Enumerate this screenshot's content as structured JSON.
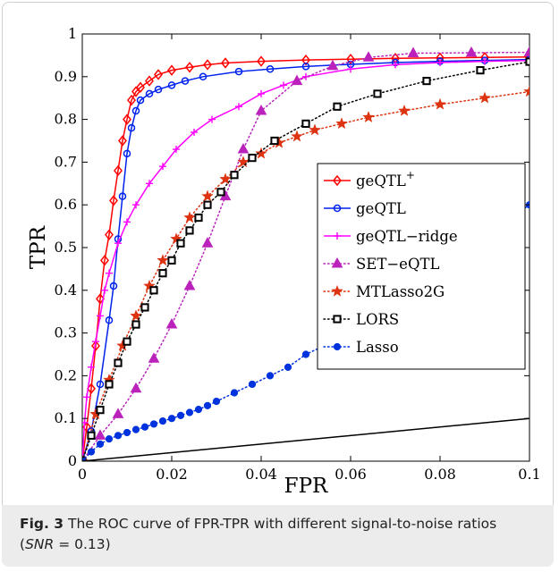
{
  "caption": {
    "fig_label": "Fig. 3",
    "text_main": " The ROC curve of FPR-TPR with different signal-to-noise ratios",
    "text_line2_open": "(",
    "snr_symbol": "SNR",
    "snr_value": " = 0.13)"
  },
  "chart_data": {
    "type": "line",
    "xlabel": "FPR",
    "ylabel": "TPR",
    "xlim": [
      0,
      0.1
    ],
    "ylim": [
      0,
      1
    ],
    "xticks": [
      0,
      0.02,
      0.04,
      0.06,
      0.08,
      0.1
    ],
    "xtick_labels": [
      "0",
      "0.02",
      "0.04",
      "0.06",
      "0.08",
      "0.1"
    ],
    "yticks": [
      0,
      0.1,
      0.2,
      0.3,
      0.4,
      0.5,
      0.6,
      0.7,
      0.8,
      0.9,
      1
    ],
    "ytick_labels": [
      "0",
      "0.1",
      "0.2",
      "0.3",
      "0.4",
      "0.5",
      "0.6",
      "0.7",
      "0.8",
      "0.9",
      "1"
    ],
    "grid": false,
    "legend_position": "right",
    "series": [
      {
        "name": "geQTL",
        "name_sup": "+",
        "color": "#ff0000",
        "marker": "diamond",
        "line": "solid",
        "x": [
          0,
          0.001,
          0.002,
          0.003,
          0.004,
          0.005,
          0.006,
          0.007,
          0.008,
          0.009,
          0.01,
          0.011,
          0.012,
          0.013,
          0.015,
          0.017,
          0.02,
          0.024,
          0.028,
          0.032,
          0.04,
          0.05,
          0.06,
          0.07,
          0.08,
          0.09,
          0.1
        ],
        "y": [
          0,
          0.08,
          0.17,
          0.27,
          0.38,
          0.47,
          0.53,
          0.61,
          0.68,
          0.75,
          0.8,
          0.845,
          0.865,
          0.875,
          0.89,
          0.905,
          0.915,
          0.922,
          0.928,
          0.932,
          0.936,
          0.939,
          0.941,
          0.943,
          0.944,
          0.945,
          0.946
        ]
      },
      {
        "name": "geQTL",
        "color": "#0022ee",
        "marker": "circle-open",
        "line": "solid",
        "x": [
          0,
          0.002,
          0.004,
          0.006,
          0.007,
          0.008,
          0.009,
          0.01,
          0.011,
          0.012,
          0.013,
          0.015,
          0.017,
          0.02,
          0.023,
          0.027,
          0.035,
          0.042,
          0.05,
          0.06,
          0.07,
          0.08,
          0.09,
          0.1
        ],
        "y": [
          0,
          0.07,
          0.18,
          0.33,
          0.41,
          0.52,
          0.62,
          0.72,
          0.78,
          0.82,
          0.845,
          0.86,
          0.87,
          0.88,
          0.89,
          0.9,
          0.912,
          0.918,
          0.924,
          0.929,
          0.933,
          0.936,
          0.938,
          0.94
        ]
      },
      {
        "name": "geQTL−ridge",
        "color": "#ff00ff",
        "marker": "plus",
        "line": "solid",
        "x": [
          0,
          0.0005,
          0.001,
          0.002,
          0.003,
          0.004,
          0.005,
          0.006,
          0.008,
          0.01,
          0.012,
          0.015,
          0.018,
          0.021,
          0.025,
          0.029,
          0.035,
          0.04,
          0.045,
          0.05,
          0.06,
          0.07,
          0.08,
          0.09,
          0.1
        ],
        "y": [
          0,
          0.09,
          0.15,
          0.22,
          0.28,
          0.34,
          0.4,
          0.44,
          0.51,
          0.56,
          0.6,
          0.65,
          0.69,
          0.73,
          0.77,
          0.8,
          0.83,
          0.86,
          0.88,
          0.9,
          0.918,
          0.928,
          0.933,
          0.936,
          0.938
        ]
      },
      {
        "name": "SET−eQTL",
        "color": "#bb22bb",
        "marker": "triangle",
        "line": "dotted",
        "x": [
          0,
          0.004,
          0.008,
          0.012,
          0.016,
          0.02,
          0.024,
          0.028,
          0.032,
          0.036,
          0.04,
          0.048,
          0.056,
          0.064,
          0.074,
          0.087,
          0.1
        ],
        "y": [
          0,
          0.06,
          0.11,
          0.17,
          0.24,
          0.32,
          0.41,
          0.51,
          0.62,
          0.73,
          0.82,
          0.89,
          0.925,
          0.945,
          0.955,
          0.956,
          0.957
        ]
      },
      {
        "name": "MTLasso2G",
        "color": "#dd3311",
        "marker": "star",
        "line": "dotted",
        "x": [
          0,
          0.003,
          0.006,
          0.009,
          0.012,
          0.015,
          0.018,
          0.021,
          0.024,
          0.028,
          0.032,
          0.036,
          0.04,
          0.044,
          0.048,
          0.052,
          0.058,
          0.064,
          0.072,
          0.08,
          0.09,
          0.1
        ],
        "y": [
          0,
          0.11,
          0.19,
          0.27,
          0.34,
          0.41,
          0.47,
          0.52,
          0.57,
          0.62,
          0.66,
          0.7,
          0.72,
          0.745,
          0.76,
          0.775,
          0.79,
          0.805,
          0.82,
          0.835,
          0.85,
          0.865
        ]
      },
      {
        "name": "LORS",
        "color": "#000000",
        "marker": "square",
        "line": "dotted",
        "x": [
          0,
          0.002,
          0.004,
          0.006,
          0.008,
          0.01,
          0.012,
          0.014,
          0.016,
          0.018,
          0.02,
          0.022,
          0.024,
          0.026,
          0.028,
          0.031,
          0.034,
          0.038,
          0.043,
          0.05,
          0.057,
          0.066,
          0.077,
          0.089,
          0.1
        ],
        "y": [
          0,
          0.06,
          0.12,
          0.18,
          0.23,
          0.28,
          0.32,
          0.36,
          0.4,
          0.44,
          0.47,
          0.51,
          0.54,
          0.57,
          0.6,
          0.63,
          0.67,
          0.71,
          0.75,
          0.79,
          0.83,
          0.86,
          0.89,
          0.915,
          0.935
        ]
      },
      {
        "name": "Lasso",
        "color": "#0033dd",
        "marker": "circle-filled",
        "line": "dotted",
        "x": [
          0,
          0.002,
          0.004,
          0.006,
          0.008,
          0.01,
          0.012,
          0.014,
          0.016,
          0.018,
          0.02,
          0.022,
          0.024,
          0.026,
          0.028,
          0.03,
          0.034,
          0.038,
          0.042,
          0.046,
          0.05,
          0.054,
          0.058,
          0.062,
          0.066,
          0.07,
          0.074,
          0.078,
          0.082,
          0.086,
          0.09,
          0.1
        ],
        "y": [
          0,
          0.022,
          0.04,
          0.052,
          0.06,
          0.067,
          0.074,
          0.08,
          0.087,
          0.094,
          0.1,
          0.107,
          0.114,
          0.121,
          0.13,
          0.14,
          0.16,
          0.18,
          0.2,
          0.22,
          0.25,
          0.27,
          0.3,
          0.33,
          0.35,
          0.38,
          0.41,
          0.44,
          0.47,
          0.5,
          0.53,
          0.6
        ]
      },
      {
        "name": "",
        "color": "#000000",
        "marker": "none",
        "line": "solid",
        "x": [
          0,
          0.1
        ],
        "y": [
          0,
          0.1
        ]
      }
    ]
  }
}
